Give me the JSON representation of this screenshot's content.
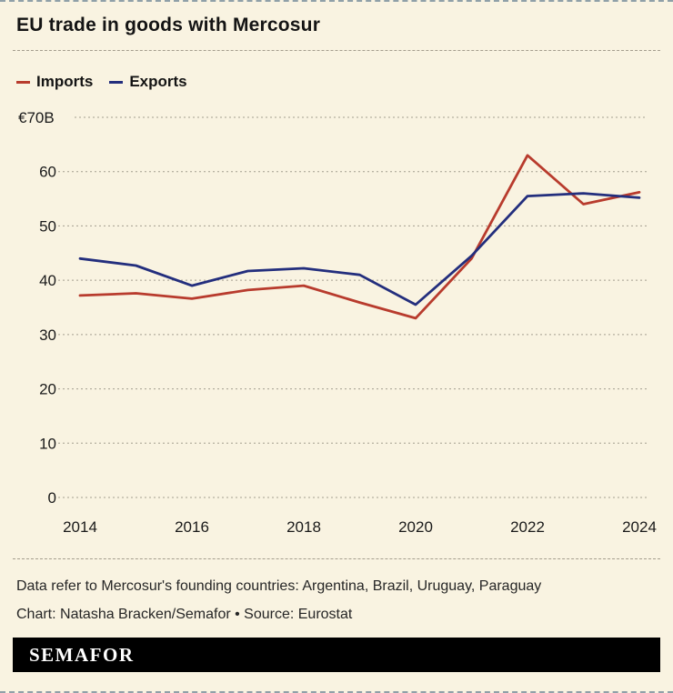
{
  "header": {
    "title": "EU trade in goods with Mercosur"
  },
  "legend": {
    "items": [
      {
        "label": "Imports",
        "color": "#b83b2d"
      },
      {
        "label": "Exports",
        "color": "#232e7d"
      }
    ]
  },
  "chart_data": {
    "type": "line",
    "title": "EU trade in goods with Mercosur",
    "x": [
      2014,
      2015,
      2016,
      2017,
      2018,
      2019,
      2020,
      2021,
      2022,
      2023,
      2024
    ],
    "series": [
      {
        "name": "Imports",
        "color": "#b83b2d",
        "values": [
          37.2,
          37.6,
          36.6,
          38.2,
          39.0,
          35.9,
          33.0,
          44.0,
          63.0,
          54.0,
          56.2
        ]
      },
      {
        "name": "Exports",
        "color": "#232e7d",
        "values": [
          44.0,
          42.7,
          39.0,
          41.7,
          42.2,
          41.0,
          35.5,
          44.5,
          55.5,
          56.0,
          55.2
        ]
      }
    ],
    "ylabel_top": "€70B",
    "y_ticks": [
      0,
      10,
      20,
      30,
      40,
      50,
      60,
      70
    ],
    "x_ticks": [
      2014,
      2016,
      2018,
      2020,
      2022,
      2024
    ],
    "ylim": [
      0,
      70
    ],
    "grid": "horizontal-dashed",
    "legend_position": "top-left"
  },
  "footer": {
    "note_countries": "Data refer to Mercosur's founding countries: Argentina, Brazil, Uruguay, Paraguay",
    "note_credit": "Chart: Natasha Bracken/Semafor • Source: Eurostat",
    "brand": "SEMAFOR"
  }
}
